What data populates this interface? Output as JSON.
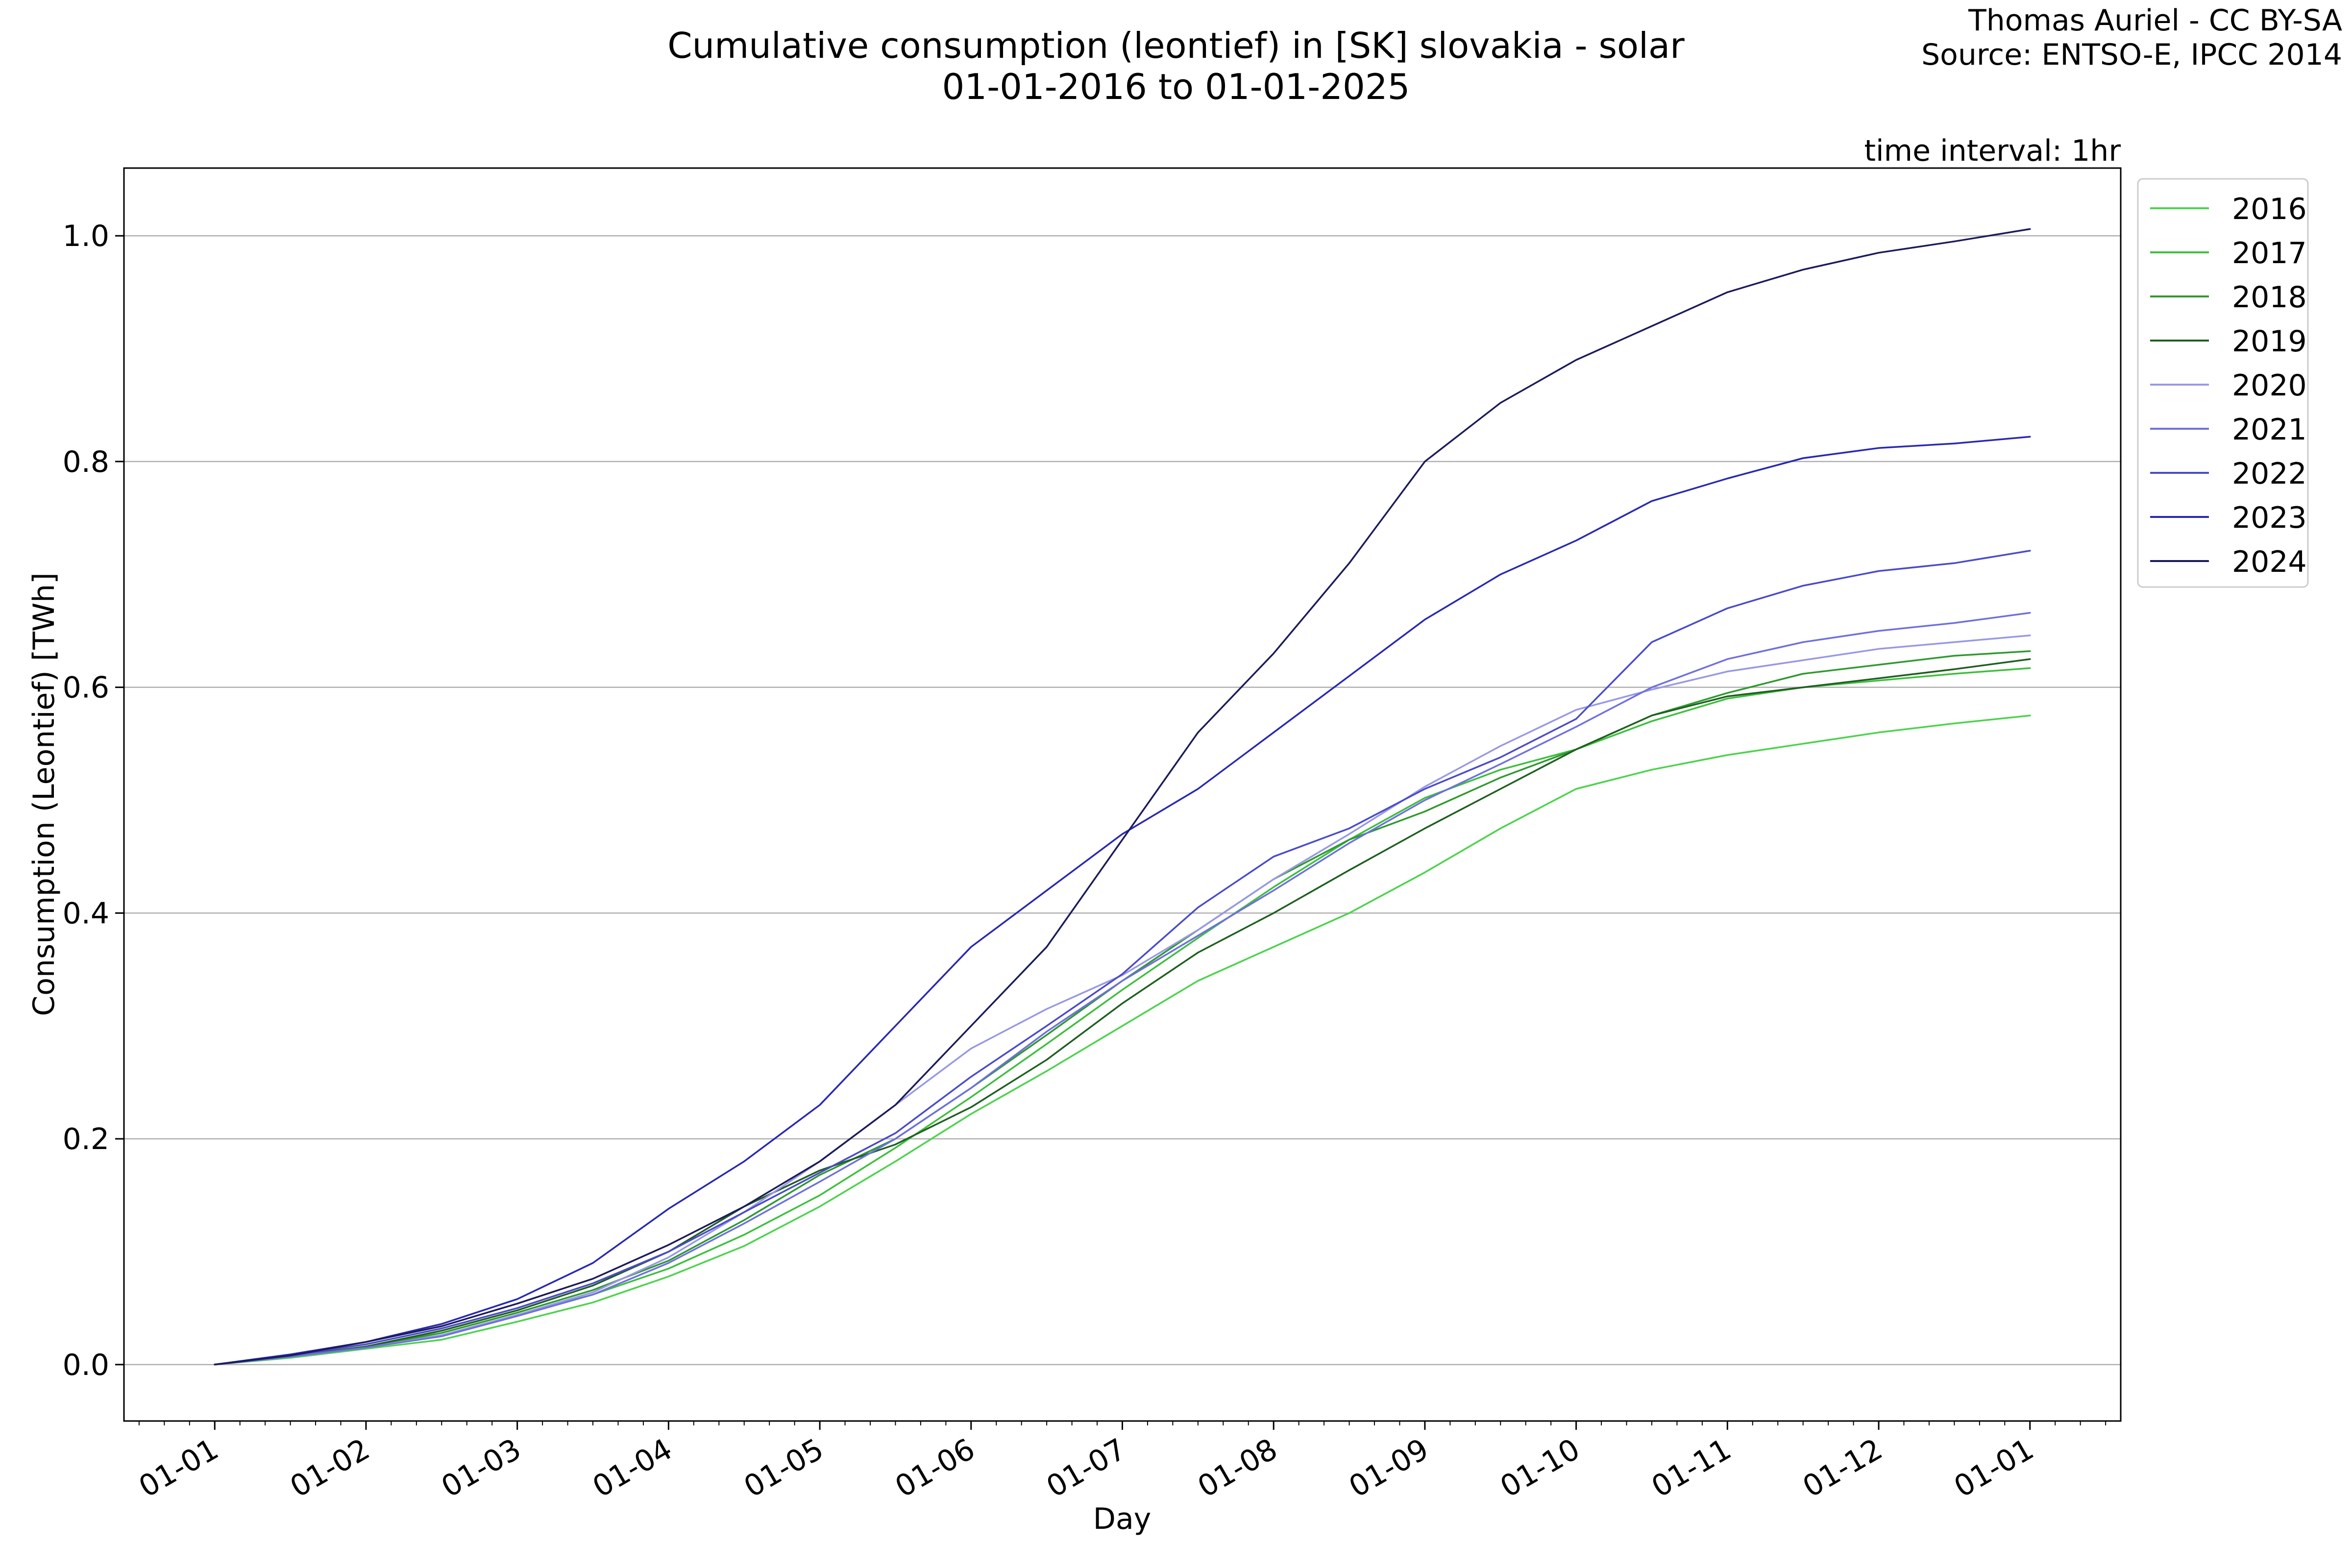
{
  "header": {
    "title_line1": "Cumulative consumption (leontief) in [SK] slovakia - solar",
    "title_line2": "01-01-2016 to 01-01-2025",
    "credit_line1": "Thomas Auriel - CC BY-SA",
    "credit_line2": "Source: ENTSO-E, IPCC 2014",
    "interval": "time interval: 1hr"
  },
  "chart_data": {
    "type": "line",
    "title": "Cumulative consumption (leontief) in [SK] slovakia - solar",
    "subtitle": "01-01-2016 to 01-01-2025",
    "xlabel": "Day",
    "ylabel": "Consumption (Leontief) [TWh]",
    "x_unit": "month of year",
    "xlim": [
      -0.6,
      12.6
    ],
    "ylim": [
      -0.05,
      1.06
    ],
    "x_ticks": [
      0,
      1,
      2,
      3,
      4,
      5,
      6,
      7,
      8,
      9,
      10,
      11,
      12
    ],
    "x_tick_labels": [
      "01-01",
      "01-02",
      "01-03",
      "01-04",
      "01-05",
      "01-06",
      "01-07",
      "01-08",
      "01-09",
      "01-10",
      "01-11",
      "01-12",
      "01-01"
    ],
    "y_ticks": [
      0.0,
      0.2,
      0.4,
      0.6,
      0.8,
      1.0
    ],
    "y_tick_labels": [
      "0.0",
      "0.2",
      "0.4",
      "0.6",
      "0.8",
      "1.0"
    ],
    "grid": "horizontal",
    "legend_position": "upper-right-outside",
    "x": [
      0,
      0.5,
      1,
      1.5,
      2,
      2.5,
      3,
      3.5,
      4,
      4.5,
      5,
      5.5,
      6,
      6.5,
      7,
      7.5,
      8,
      8.5,
      9,
      9.5,
      10,
      10.5,
      11,
      11.5,
      12
    ],
    "series": [
      {
        "name": "2016",
        "color": "#4cd34c",
        "values": [
          0.0,
          0.006,
          0.014,
          0.022,
          0.038,
          0.055,
          0.078,
          0.105,
          0.14,
          0.18,
          0.222,
          0.26,
          0.3,
          0.34,
          0.37,
          0.4,
          0.436,
          0.475,
          0.51,
          0.527,
          0.54,
          0.55,
          0.56,
          0.568,
          0.575
        ]
      },
      {
        "name": "2017",
        "color": "#3dbf3d",
        "values": [
          0.0,
          0.007,
          0.016,
          0.026,
          0.044,
          0.062,
          0.085,
          0.115,
          0.15,
          0.192,
          0.237,
          0.284,
          0.332,
          0.378,
          0.423,
          0.465,
          0.502,
          0.527,
          0.545,
          0.57,
          0.59,
          0.6,
          0.606,
          0.612,
          0.617
        ]
      },
      {
        "name": "2018",
        "color": "#2e9a2e",
        "values": [
          0.0,
          0.007,
          0.016,
          0.028,
          0.046,
          0.066,
          0.092,
          0.128,
          0.168,
          0.2,
          0.245,
          0.292,
          0.34,
          0.385,
          0.43,
          0.465,
          0.49,
          0.52,
          0.545,
          0.575,
          0.595,
          0.612,
          0.62,
          0.628,
          0.632
        ]
      },
      {
        "name": "2019",
        "color": "#1f5f1f",
        "values": [
          0.0,
          0.007,
          0.016,
          0.03,
          0.048,
          0.07,
          0.1,
          0.14,
          0.172,
          0.195,
          0.228,
          0.27,
          0.32,
          0.365,
          0.4,
          0.438,
          0.475,
          0.51,
          0.545,
          0.575,
          0.592,
          0.6,
          0.608,
          0.616,
          0.625
        ]
      },
      {
        "name": "2020",
        "color": "#9898e6",
        "values": [
          0.0,
          0.007,
          0.015,
          0.026,
          0.044,
          0.064,
          0.095,
          0.135,
          0.18,
          0.23,
          0.28,
          0.315,
          0.345,
          0.385,
          0.43,
          0.47,
          0.512,
          0.548,
          0.58,
          0.598,
          0.614,
          0.624,
          0.634,
          0.64,
          0.646
        ]
      },
      {
        "name": "2021",
        "color": "#6f6fe0",
        "values": [
          0.0,
          0.007,
          0.015,
          0.025,
          0.043,
          0.062,
          0.09,
          0.125,
          0.162,
          0.2,
          0.245,
          0.295,
          0.34,
          0.38,
          0.42,
          0.462,
          0.5,
          0.532,
          0.565,
          0.6,
          0.625,
          0.64,
          0.65,
          0.657,
          0.666
        ]
      },
      {
        "name": "2022",
        "color": "#4a4acc",
        "values": [
          0.0,
          0.008,
          0.018,
          0.032,
          0.05,
          0.072,
          0.1,
          0.135,
          0.17,
          0.205,
          0.255,
          0.3,
          0.346,
          0.405,
          0.45,
          0.475,
          0.51,
          0.538,
          0.572,
          0.64,
          0.67,
          0.69,
          0.703,
          0.71,
          0.721
        ]
      },
      {
        "name": "2023",
        "color": "#2828b4",
        "values": [
          0.0,
          0.009,
          0.02,
          0.036,
          0.058,
          0.09,
          0.138,
          0.18,
          0.23,
          0.3,
          0.37,
          0.42,
          0.47,
          0.51,
          0.56,
          0.61,
          0.66,
          0.7,
          0.73,
          0.765,
          0.785,
          0.803,
          0.812,
          0.816,
          0.822
        ]
      },
      {
        "name": "2024",
        "color": "#1b1b5a",
        "values": [
          0.0,
          0.008,
          0.02,
          0.034,
          0.054,
          0.076,
          0.106,
          0.14,
          0.18,
          0.23,
          0.3,
          0.37,
          0.465,
          0.56,
          0.63,
          0.71,
          0.8,
          0.852,
          0.89,
          0.92,
          0.95,
          0.97,
          0.985,
          0.995,
          1.006
        ]
      }
    ]
  }
}
